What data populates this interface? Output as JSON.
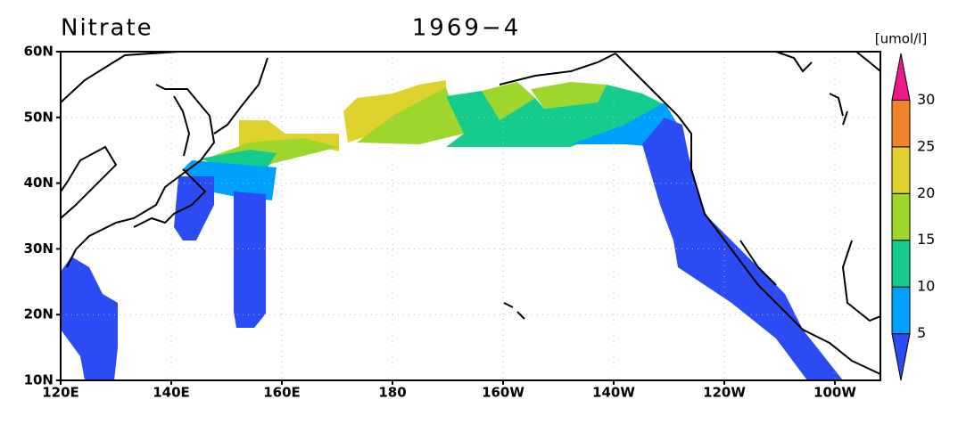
{
  "title": "Nitrate",
  "date": "1969−4",
  "colorbar": {
    "unit": "[umol/l]",
    "levels": [
      5,
      10,
      15,
      20,
      25,
      30
    ],
    "colors": [
      "#2b4cf5",
      "#00a0ff",
      "#14cc8c",
      "#9ed62c",
      "#e0d22c",
      "#ef842a",
      "#ec1a8a"
    ]
  },
  "lon_ticks": [
    {
      "value": 120,
      "label": "120E"
    },
    {
      "value": 140,
      "label": "140E"
    },
    {
      "value": 160,
      "label": "160E"
    },
    {
      "value": 180,
      "label": "180"
    },
    {
      "value": 200,
      "label": "160W"
    },
    {
      "value": 220,
      "label": "140W"
    },
    {
      "value": 240,
      "label": "120W"
    },
    {
      "value": 260,
      "label": "100W"
    }
  ],
  "lat_ticks": [
    {
      "value": 10,
      "label": "10N"
    },
    {
      "value": 20,
      "label": "20N"
    },
    {
      "value": 30,
      "label": "30N"
    },
    {
      "value": 40,
      "label": "40N"
    },
    {
      "value": 50,
      "label": "50N"
    },
    {
      "value": 60,
      "label": "60N"
    }
  ]
}
